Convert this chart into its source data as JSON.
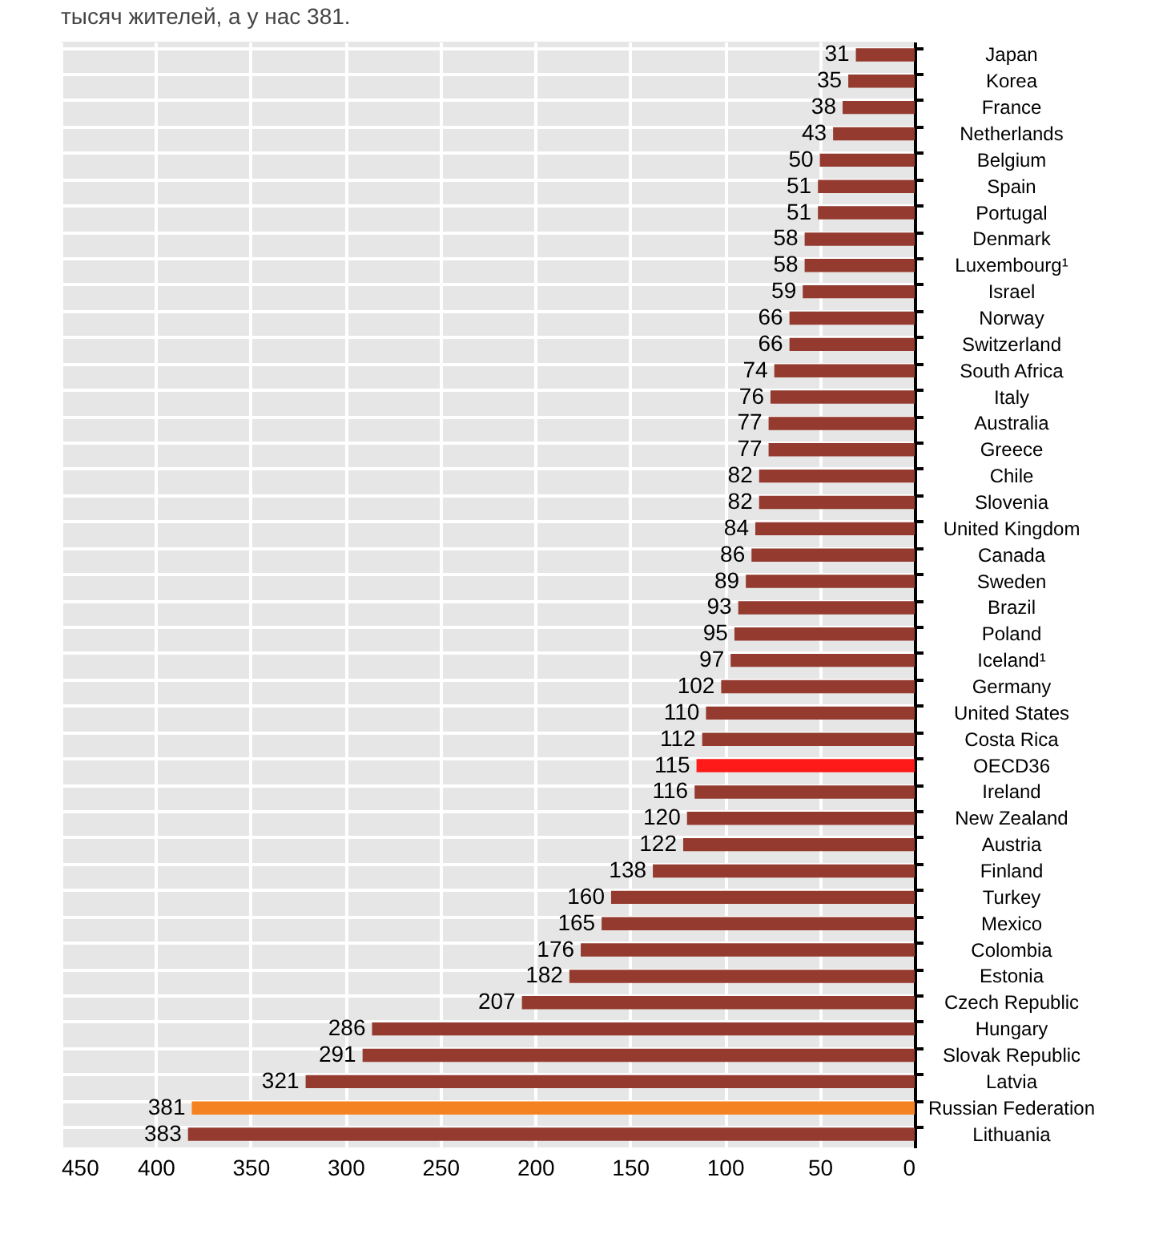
{
  "chart_data": {
    "type": "bar",
    "orientation": "horizontal",
    "annotations": [
      "тысяч жителей, а у нас 381."
    ],
    "categories": [
      "Japan",
      "Korea",
      "France",
      "Netherlands",
      "Belgium",
      "Spain",
      "Portugal",
      "Denmark",
      "Luxembourg¹",
      "Israel",
      "Norway",
      "Switzerland",
      "South Africa",
      "Italy",
      "Australia",
      "Greece",
      "Chile",
      "Slovenia",
      "United Kingdom",
      "Canada",
      "Sweden",
      "Brazil",
      "Poland",
      "Iceland¹",
      "Germany",
      "United States",
      "Costa Rica",
      "OECD36",
      "Ireland",
      "New Zealand",
      "Austria",
      "Finland",
      "Turkey",
      "Mexico",
      "Colombia",
      "Estonia",
      "Czech Republic",
      "Hungary",
      "Slovak Republic",
      "Latvia",
      "Russian Federation",
      "Lithuania"
    ],
    "values": [
      31,
      35,
      38,
      43,
      50,
      51,
      51,
      58,
      58,
      59,
      66,
      66,
      74,
      76,
      77,
      77,
      82,
      82,
      84,
      86,
      89,
      93,
      95,
      97,
      102,
      110,
      112,
      115,
      116,
      120,
      122,
      138,
      160,
      165,
      176,
      182,
      207,
      286,
      291,
      321,
      381,
      383
    ],
    "colors": [
      "#943a2e",
      "#943a2e",
      "#943a2e",
      "#943a2e",
      "#943a2e",
      "#943a2e",
      "#943a2e",
      "#943a2e",
      "#943a2e",
      "#943a2e",
      "#943a2e",
      "#943a2e",
      "#943a2e",
      "#943a2e",
      "#943a2e",
      "#943a2e",
      "#943a2e",
      "#943a2e",
      "#943a2e",
      "#943a2e",
      "#943a2e",
      "#943a2e",
      "#943a2e",
      "#943a2e",
      "#943a2e",
      "#943a2e",
      "#943a2e",
      "#ff1a1a",
      "#943a2e",
      "#943a2e",
      "#943a2e",
      "#943a2e",
      "#943a2e",
      "#943a2e",
      "#943a2e",
      "#943a2e",
      "#943a2e",
      "#943a2e",
      "#943a2e",
      "#943a2e",
      "#f58220",
      "#943a2e"
    ],
    "xlim": [
      450,
      0
    ],
    "xticks": [
      450,
      400,
      350,
      300,
      250,
      200,
      150,
      100,
      50,
      0
    ],
    "grid": true,
    "data_labels": true
  }
}
